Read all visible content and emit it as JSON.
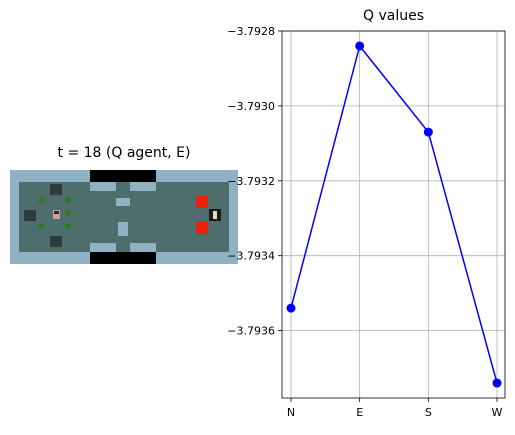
{
  "left_panel": {
    "title": "t = 18 (Q agent, E)"
  },
  "chart_data": {
    "type": "line",
    "title": "Q values",
    "xlabel": "",
    "ylabel": "",
    "categories": [
      "N",
      "E",
      "S",
      "W"
    ],
    "values": [
      -3.79354,
      -3.79284,
      -3.79307,
      -3.79374
    ],
    "ylim": [
      -3.79378,
      -3.7928
    ],
    "yticks": [
      -3.7928,
      -3.793,
      -3.7932,
      -3.7934,
      -3.7936
    ],
    "ytick_labels": [
      "−3.7928",
      "−3.7930",
      "−3.7932",
      "−3.7934",
      "−3.7936"
    ],
    "grid": true,
    "line_color": "#0000ff",
    "marker": "circle"
  }
}
